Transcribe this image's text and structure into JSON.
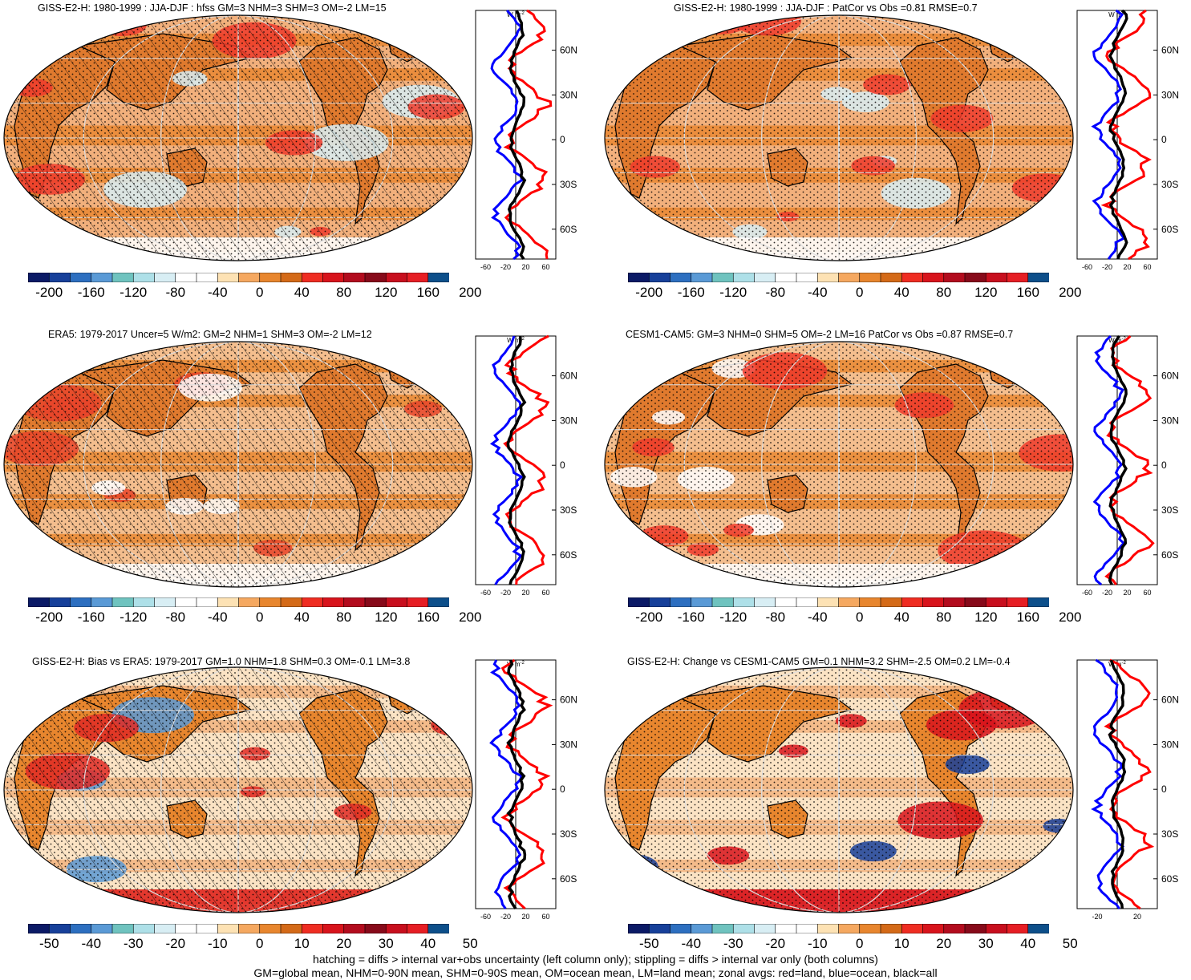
{
  "panels": [
    {
      "id": "p1",
      "title": "GISS-E2-H: 1980-1999 : JJA-DJF : hfss GM=3 NHM=3 SHM=3 OM=-2 LM=15",
      "hatch": true,
      "variant": 1
    },
    {
      "id": "p2",
      "title": "GISS-E2-H: 1980-1999 : JJA-DJF : PatCor vs Obs =0.81 RMSE=0.7",
      "hatch": false,
      "variant": 2
    },
    {
      "id": "p3",
      "title": "ERA5: 1979-2017 Uncer=5 W/m2: GM=2 NHM=1 SHM=3 OM=-2 LM=12",
      "hatch": true,
      "variant": 3
    },
    {
      "id": "p4",
      "title": "CESM1-CAM5: GM=3 NHM=0 SHM=5 OM=-2 LM=16 PatCor vs Obs =0.87 RMSE=0.7",
      "hatch": false,
      "variant": 4
    },
    {
      "id": "p5",
      "title": "GISS-E2-H: Bias vs ERA5: 1979-2017 GM=1.0 NHM=1.8 SHM=0.3 OM=-0.1 LM=3.8",
      "hatch": true,
      "variant": 5
    },
    {
      "id": "p6",
      "title": "GISS-E2-H: Change vs CESM1-CAM5 GM=0.1 NHM=3.2 SHM=-2.5 OM=0.2 LM=-0.4",
      "hatch": false,
      "variant": 6
    }
  ],
  "colorbar_labels_large": [
    "-200",
    "-160",
    "-120",
    "-80",
    "-40",
    "0",
    "40",
    "80",
    "120",
    "160",
    "200"
  ],
  "colorbar_labels_small": [
    "-50",
    "-40",
    "-30",
    "-20",
    "-10",
    "0",
    "10",
    "20",
    "30",
    "40",
    "50"
  ],
  "colorbar_colors": [
    "#0b1a66",
    "#17409a",
    "#2d6fc0",
    "#5a9ad6",
    "#6fc3bf",
    "#aee0e8",
    "#d8eef4",
    "#ffffff",
    "#ffffff",
    "#fde2b4",
    "#f5a860",
    "#e8862e",
    "#d46a18",
    "#ef2d22",
    "#d8141c",
    "#b30c1e",
    "#870a1a",
    "#c80f1e",
    "#e61e24",
    "#0d4f8a"
  ],
  "zonal": {
    "unit": "W m",
    "unit_sup": "-2",
    "lat_labels": [
      "60N",
      "30N",
      "0",
      "30S",
      "60S"
    ],
    "x_labels_wide": [
      "-60",
      "-20",
      "20",
      "60"
    ],
    "x_labels_narrow": [
      "-20",
      "20"
    ],
    "series_colors": {
      "land": "#ff0000",
      "ocean": "#0000ff",
      "all": "#000000"
    }
  },
  "footer": {
    "line1": "hatching = diffs > internal var+obs uncertainty (left column only); stippling = diffs > internal var only (both columns)",
    "line2": "GM=global mean, NHM=0-90N mean, SHM=0-90S mean, OM=ocean mean, LM=land mean; zonal avgs: red=land, blue=ocean, black=all"
  }
}
